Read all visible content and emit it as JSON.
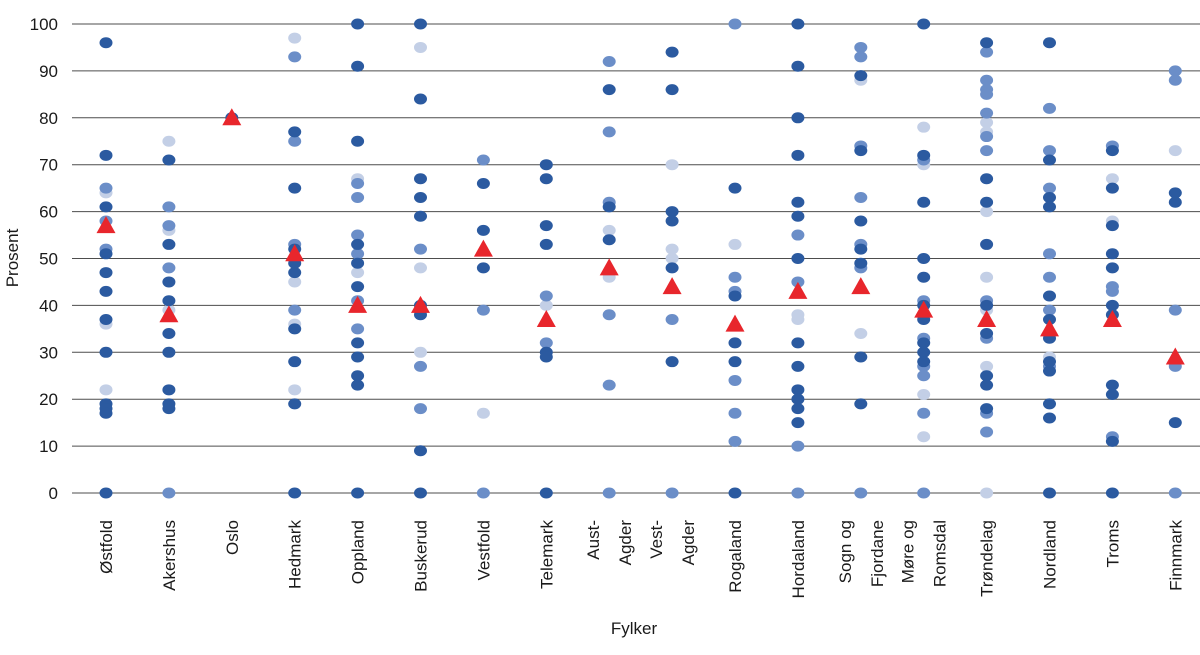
{
  "chart_data": {
    "type": "scatter",
    "xlabel": "Fylker",
    "ylabel": "Prosent",
    "ylim": [
      0,
      100
    ],
    "yticks": [
      0,
      10,
      20,
      30,
      40,
      50,
      60,
      70,
      80,
      90,
      100
    ],
    "grid": true,
    "legend": "none",
    "colors": {
      "dark": "#2b5aa0",
      "medium": "#6b8ec8",
      "light": "#c3cfe6",
      "mean_marker": "#e8262c",
      "grid": "#4d4d4d"
    },
    "categories": [
      {
        "label": [
          "Østfold"
        ],
        "mean": 57,
        "dark": [
          96,
          72,
          61,
          51,
          47,
          43,
          37,
          30,
          19,
          18,
          17,
          0
        ],
        "medium": [
          65,
          58,
          52
        ],
        "light": [
          64,
          36,
          22
        ]
      },
      {
        "label": [
          "Akershus"
        ],
        "mean": 38,
        "dark": [
          71,
          53,
          45,
          41,
          34,
          30,
          22,
          19,
          18
        ],
        "medium": [
          61,
          57,
          48,
          0
        ],
        "light": [
          75,
          56,
          39
        ]
      },
      {
        "label": [
          "Oslo"
        ],
        "mean": 80,
        "dark": [
          80
        ],
        "medium": [],
        "light": []
      },
      {
        "label": [
          "Hedmark"
        ],
        "mean": 51,
        "dark": [
          77,
          65,
          52,
          49,
          47,
          35,
          28,
          19,
          0
        ],
        "medium": [
          93,
          75,
          53,
          39
        ],
        "light": [
          97,
          45,
          36,
          22
        ]
      },
      {
        "label": [
          "Oppland"
        ],
        "mean": 40,
        "dark": [
          100,
          91,
          75,
          53,
          49,
          44,
          32,
          29,
          25,
          23,
          0
        ],
        "medium": [
          66,
          63,
          55,
          51,
          41,
          35
        ],
        "light": [
          67,
          47
        ]
      },
      {
        "label": [
          "Buskerud"
        ],
        "mean": 40,
        "dark": [
          100,
          84,
          67,
          63,
          59,
          40,
          38,
          9,
          0
        ],
        "medium": [
          52,
          27,
          18
        ],
        "light": [
          95,
          48,
          30
        ]
      },
      {
        "label": [
          "Vestfold"
        ],
        "mean": 52,
        "dark": [
          66,
          56,
          48
        ],
        "medium": [
          71,
          39,
          0
        ],
        "light": [
          17
        ]
      },
      {
        "label": [
          "Telemark"
        ],
        "mean": 37,
        "dark": [
          70,
          67,
          57,
          53,
          30,
          29,
          0
        ],
        "medium": [
          42,
          32
        ],
        "light": [
          40
        ]
      },
      {
        "label": [
          "Aust-",
          "Agder"
        ],
        "mean": 48,
        "dark": [
          86,
          61,
          54
        ],
        "medium": [
          92,
          77,
          62,
          38,
          23,
          0
        ],
        "light": [
          56,
          46
        ]
      },
      {
        "label": [
          "Vest-",
          "Agder"
        ],
        "mean": 44,
        "dark": [
          94,
          86,
          60,
          58,
          48,
          28
        ],
        "medium": [
          37,
          0
        ],
        "light": [
          70,
          52,
          50
        ]
      },
      {
        "label": [
          "Rogaland"
        ],
        "mean": 36,
        "dark": [
          65,
          42,
          32,
          28,
          0
        ],
        "medium": [
          100,
          46,
          43,
          24,
          17,
          11
        ],
        "light": [
          53
        ]
      },
      {
        "label": [
          "Hordaland"
        ],
        "mean": 43,
        "dark": [
          100,
          91,
          80,
          72,
          62,
          59,
          50,
          32,
          27,
          22,
          20,
          18,
          15
        ],
        "medium": [
          55,
          45,
          10,
          0
        ],
        "light": [
          38,
          37
        ]
      },
      {
        "label": [
          "Sogn og",
          "Fjordane"
        ],
        "mean": 44,
        "dark": [
          89,
          73,
          58,
          52,
          49,
          29,
          19
        ],
        "medium": [
          95,
          93,
          74,
          63,
          53,
          48,
          0
        ],
        "light": [
          88,
          34
        ]
      },
      {
        "label": [
          "Møre og",
          "Romsdal"
        ],
        "mean": 39,
        "dark": [
          100,
          72,
          62,
          50,
          46,
          40,
          37,
          32,
          30,
          28
        ],
        "medium": [
          71,
          41,
          33,
          27,
          25,
          17,
          0
        ],
        "light": [
          78,
          70,
          21,
          12
        ]
      },
      {
        "label": [
          "Trøndelag"
        ],
        "mean": 37,
        "dark": [
          96,
          67,
          62,
          53,
          40,
          34,
          25,
          23,
          18
        ],
        "medium": [
          94,
          88,
          86,
          85,
          81,
          76,
          73,
          41,
          33,
          17,
          13
        ],
        "light": [
          79,
          77,
          60,
          46,
          39,
          27,
          0
        ]
      },
      {
        "label": [
          "Nordland"
        ],
        "mean": 35,
        "dark": [
          96,
          71,
          63,
          61,
          42,
          37,
          33,
          28,
          26,
          19,
          16,
          0
        ],
        "medium": [
          82,
          73,
          65,
          51,
          46,
          39,
          27
        ],
        "light": [
          42,
          29
        ]
      },
      {
        "label": [
          "Troms"
        ],
        "mean": 37,
        "dark": [
          73,
          65,
          57,
          51,
          48,
          40,
          38,
          23,
          21,
          11,
          0
        ],
        "medium": [
          74,
          44,
          43,
          12
        ],
        "light": [
          67,
          58
        ]
      },
      {
        "label": [
          "Finnmark"
        ],
        "mean": 29,
        "dark": [
          64,
          62,
          15
        ],
        "medium": [
          90,
          88,
          39,
          27,
          0
        ],
        "light": [
          73
        ]
      }
    ]
  }
}
